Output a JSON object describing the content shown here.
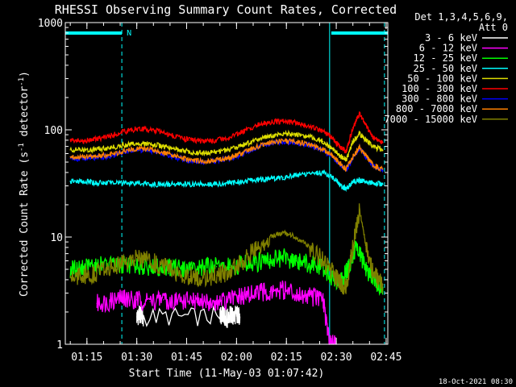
{
  "chart_data": {
    "type": "line",
    "title": "RHESSI Observing Summary Count Rates, Corrected",
    "xlabel": "Start Time (11-May-03 01:07:42)",
    "ylabel_main": "Corrected Count Rate (s",
    "ylabel_sup1": "-1",
    "ylabel_mid": " detector",
    "ylabel_sup2": "-1",
    "ylabel_end": ")",
    "y_scale": "log",
    "ylim": [
      1,
      1000
    ],
    "xlim_minutes": [
      68.5,
      165.5
    ],
    "y_ticks": [
      {
        "value": 1,
        "label": "1"
      },
      {
        "value": 10,
        "label": "10"
      },
      {
        "value": 100,
        "label": "100"
      },
      {
        "value": 1000,
        "label": "1000"
      }
    ],
    "x_ticks": [
      {
        "minutes": 75,
        "label": "01:15"
      },
      {
        "minutes": 90,
        "label": "01:30"
      },
      {
        "minutes": 105,
        "label": "01:45"
      },
      {
        "minutes": 120,
        "label": "02:00"
      },
      {
        "minutes": 135,
        "label": "02:15"
      },
      {
        "minutes": 150,
        "label": "02:30"
      },
      {
        "minutes": 165,
        "label": "02:45"
      }
    ],
    "legend_header": [
      "Det 1,3,4,5,6,9,",
      "Att 0"
    ],
    "legend_placement": "right",
    "timestamp": "18-Oct-2021 08:30",
    "night_mark": "N",
    "night_bars_minutes": [
      [
        68.5,
        85.5
      ],
      [
        148.5,
        165.5
      ]
    ],
    "vlines_solid_minutes": [
      148
    ],
    "vlines_dashed_minutes": [
      85.5,
      164.5
    ],
    "series": [
      {
        "name": "3 - 6 keV",
        "color": "#ffffff",
        "x": [
          90,
          91,
          92,
          115,
          116,
          117,
          118,
          119,
          120,
          121
        ],
        "y": [
          1.8,
          1.9,
          1.8,
          1.8,
          1.9,
          1.7,
          1.9,
          1.8,
          1.9,
          1.8
        ]
      },
      {
        "name": "6 - 12 keV",
        "color": "#ff00ff",
        "x": [
          78,
          82,
          86,
          90,
          94,
          98,
          102,
          106,
          110,
          114,
          118,
          122,
          126,
          130,
          134,
          138,
          142,
          146,
          148,
          150
        ],
        "y": [
          2.4,
          2.5,
          2.7,
          2.6,
          2.5,
          2.6,
          2.5,
          2.6,
          2.5,
          2.4,
          2.6,
          2.8,
          3.0,
          3.1,
          3.2,
          3.0,
          2.8,
          2.6,
          1.0,
          1.0
        ]
      },
      {
        "name": "12 - 25 keV",
        "color": "#00ff00",
        "x": [
          70,
          74,
          78,
          82,
          86,
          90,
          94,
          98,
          102,
          106,
          110,
          114,
          118,
          122,
          126,
          130,
          134,
          138,
          142,
          146,
          150,
          152,
          154,
          156,
          158,
          160,
          162,
          164
        ],
        "y": [
          5.0,
          5.2,
          5.5,
          5.3,
          5.6,
          5.4,
          5.2,
          5.3,
          5.1,
          5.0,
          5.2,
          5.3,
          5.2,
          5.6,
          5.8,
          6.2,
          6.4,
          6.0,
          5.6,
          5.2,
          3.8,
          4.0,
          5.5,
          8.0,
          6.0,
          4.5,
          3.8,
          3.4
        ]
      },
      {
        "name": "25 - 50 keV",
        "color": "#00ffff",
        "x": [
          70,
          74,
          78,
          82,
          86,
          90,
          94,
          98,
          102,
          106,
          110,
          114,
          118,
          122,
          126,
          130,
          134,
          138,
          142,
          146,
          149,
          151,
          153,
          155,
          157,
          159,
          161,
          164
        ],
        "y": [
          33,
          33,
          32,
          32,
          32,
          32,
          31,
          31,
          31,
          31,
          31,
          31,
          32,
          33,
          34,
          35,
          36,
          38,
          39,
          40,
          36,
          31,
          28,
          33,
          34,
          33,
          32,
          31
        ]
      },
      {
        "name": "50 - 100 keV",
        "color": "#dddd00",
        "x": [
          70,
          74,
          78,
          82,
          86,
          90,
          94,
          98,
          102,
          106,
          110,
          114,
          118,
          122,
          126,
          130,
          134,
          138,
          142,
          146,
          149,
          151,
          153,
          155,
          157,
          159,
          161,
          164
        ],
        "y": [
          65,
          65,
          66,
          68,
          72,
          75,
          74,
          70,
          66,
          62,
          61,
          62,
          66,
          72,
          80,
          88,
          92,
          90,
          86,
          78,
          66,
          58,
          52,
          78,
          92,
          80,
          70,
          64
        ]
      },
      {
        "name": "100 - 300 keV",
        "color": "#ff0000",
        "x": [
          70,
          74,
          78,
          82,
          86,
          90,
          94,
          98,
          102,
          106,
          110,
          114,
          118,
          122,
          126,
          130,
          134,
          138,
          142,
          146,
          149,
          151,
          153,
          155,
          157,
          159,
          161,
          164
        ],
        "y": [
          80,
          79,
          82,
          88,
          96,
          102,
          100,
          94,
          86,
          80,
          78,
          80,
          86,
          96,
          110,
          118,
          120,
          116,
          108,
          98,
          82,
          70,
          62,
          105,
          140,
          110,
          85,
          76
        ]
      },
      {
        "name": "300 - 800 keV",
        "color": "#0000ff",
        "x": [
          70,
          74,
          78,
          82,
          86,
          90,
          94,
          98,
          102,
          106,
          110,
          114,
          118,
          122,
          126,
          130,
          134,
          138,
          142,
          146,
          149,
          151,
          153,
          155,
          157,
          159,
          161,
          164
        ],
        "y": [
          54,
          54,
          55,
          57,
          61,
          65,
          64,
          60,
          55,
          51,
          50,
          51,
          54,
          60,
          68,
          75,
          78,
          76,
          72,
          65,
          56,
          48,
          42,
          55,
          68,
          56,
          46,
          42
        ]
      },
      {
        "name": "800 - 7000 keV",
        "color": "#ff8000",
        "x": [
          70,
          74,
          78,
          82,
          86,
          90,
          94,
          98,
          102,
          106,
          110,
          114,
          118,
          122,
          126,
          130,
          134,
          138,
          142,
          146,
          149,
          151,
          153,
          155,
          157,
          159,
          161,
          164
        ],
        "y": [
          56,
          56,
          57,
          59,
          63,
          67,
          66,
          61,
          56,
          52,
          51,
          52,
          55,
          61,
          69,
          76,
          79,
          77,
          73,
          66,
          57,
          49,
          43,
          56,
          69,
          57,
          47,
          43
        ]
      },
      {
        "name": "7000 - 15000 keV",
        "color": "#808000",
        "x": [
          70,
          74,
          78,
          82,
          86,
          90,
          94,
          98,
          102,
          106,
          110,
          114,
          118,
          122,
          126,
          130,
          134,
          138,
          142,
          146,
          149,
          151,
          153,
          155,
          157,
          159,
          161,
          164
        ],
        "y": [
          4.3,
          4.4,
          4.6,
          5.2,
          5.9,
          6.3,
          6.0,
          5.3,
          4.7,
          4.3,
          4.2,
          4.4,
          4.8,
          6.0,
          8.0,
          10.0,
          11.0,
          10.0,
          8.0,
          6.0,
          4.6,
          3.8,
          3.4,
          8.0,
          18.0,
          8.0,
          4.6,
          3.6
        ]
      }
    ]
  }
}
